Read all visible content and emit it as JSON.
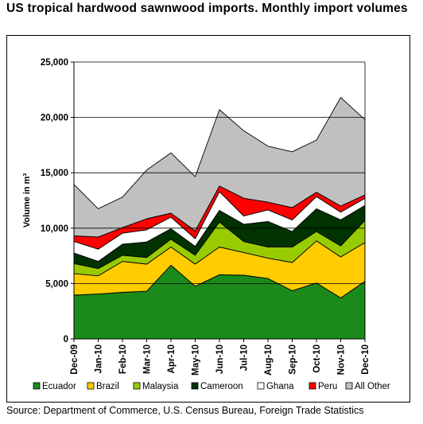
{
  "title": "US tropical hardwood sawnwood imports. Monthly import volumes",
  "source": "Source: Department of Commerce, U.S. Census Bureau, Foreign Trade Statistics",
  "chart_data": {
    "type": "area",
    "stacked": true,
    "title": "US tropical hardwood sawnwood imports. Monthly import volumes",
    "ylabel": "Volume in m³",
    "xlabel": "",
    "ylim": [
      0,
      25000
    ],
    "yticks": [
      "0",
      "5,000",
      "10,000",
      "15,000",
      "20,000",
      "25,000"
    ],
    "grid": "horizontal",
    "legend": "bottom",
    "categories": [
      "Dec-09",
      "Jan-10",
      "Feb-10",
      "Mar-10",
      "Apr-10",
      "May-10",
      "Jun-10",
      "Jul-10",
      "Aug-10",
      "Sep-10",
      "Oct-10",
      "Nov-10",
      "Dec-10"
    ],
    "series": [
      {
        "name": "Ecuador",
        "color": "#1a8a1a",
        "values": [
          3950,
          4050,
          4200,
          4300,
          6650,
          4750,
          5800,
          5750,
          5450,
          4350,
          5050,
          3700,
          5200
        ]
      },
      {
        "name": "Brazil",
        "color": "#ffcc00",
        "values": [
          1950,
          1650,
          2800,
          2450,
          1650,
          2000,
          2500,
          2050,
          1850,
          2550,
          3800,
          3700,
          3500
        ]
      },
      {
        "name": "Malaysia",
        "color": "#99cc00",
        "values": [
          900,
          650,
          550,
          600,
          700,
          800,
          2250,
          1000,
          1000,
          1400,
          850,
          1000,
          2000
        ]
      },
      {
        "name": "Cameroon",
        "color": "#003300",
        "values": [
          950,
          650,
          1000,
          1400,
          950,
          800,
          1050,
          1550,
          2300,
          1400,
          2050,
          2350,
          1350
        ]
      },
      {
        "name": "Ghana",
        "color": "#ffffff",
        "values": [
          1050,
          1100,
          1000,
          1100,
          1050,
          700,
          1700,
          750,
          1050,
          1050,
          1100,
          700,
          650
        ]
      },
      {
        "name": "Peru",
        "color": "#ff0000",
        "values": [
          500,
          1100,
          500,
          1000,
          350,
          700,
          500,
          1600,
          700,
          1100,
          400,
          550,
          300
        ]
      },
      {
        "name": "All Other",
        "color": "#c0c0c0",
        "values": [
          4650,
          2550,
          2750,
          4400,
          5450,
          4900,
          6900,
          6100,
          5050,
          5050,
          4700,
          9800,
          6800
        ]
      }
    ]
  }
}
